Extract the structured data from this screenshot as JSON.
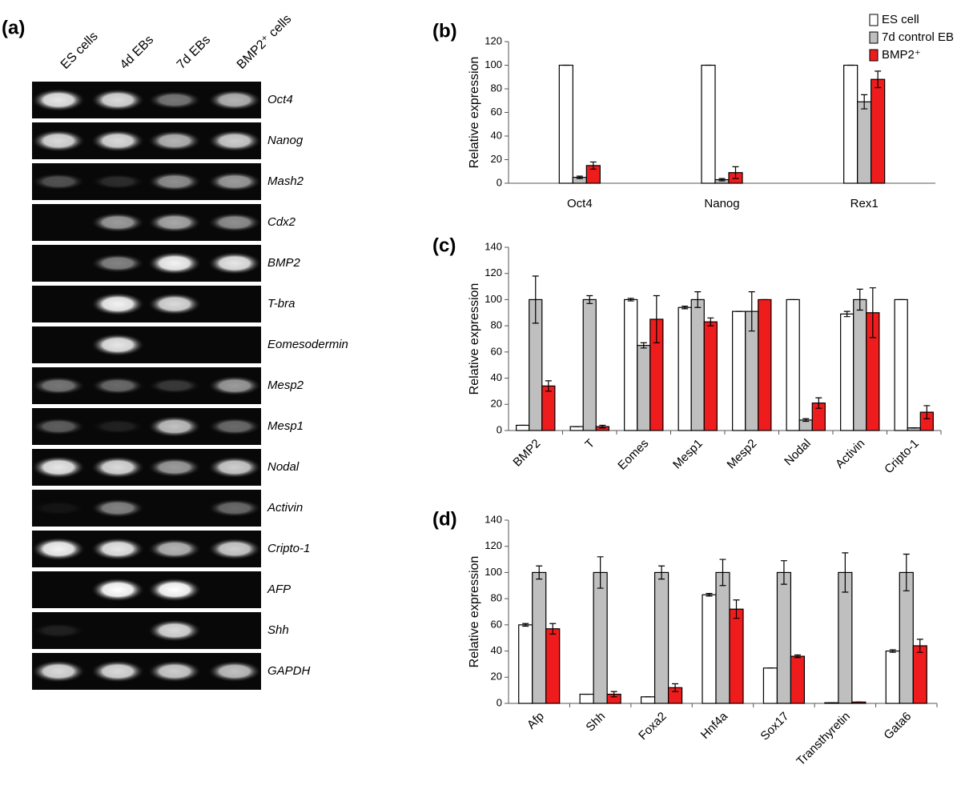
{
  "gel": {
    "panel_label": "(a)",
    "lanes": [
      "ES cells",
      "4d EBs",
      "7d EBs",
      "BMP2⁺ cells"
    ],
    "genes": [
      "Oct4",
      "Nanog",
      "Mash2",
      "Cdx2",
      "BMP2",
      "T-bra",
      "Eomesodermin",
      "Mesp2",
      "Mesp1",
      "Nodal",
      "Activin",
      "Cripto-1",
      "AFP",
      "Shh",
      "GAPDH"
    ]
  },
  "chart_data": [
    {
      "type": "bar",
      "panel_label": "(b)",
      "ylabel": "Relative expression",
      "categories": [
        "Oct4",
        "Nanog",
        "Rex1"
      ],
      "series": [
        {
          "name": "ES cell",
          "color": "#ffffff",
          "values": [
            100,
            100,
            100
          ],
          "errors": [
            0,
            0,
            0
          ]
        },
        {
          "name": "7d control EB",
          "color": "#bfbfbf",
          "values": [
            5,
            3,
            69
          ],
          "errors": [
            1,
            1,
            6
          ]
        },
        {
          "name": "BMP2⁺",
          "color": "#ee1c1c",
          "values": [
            15,
            9,
            88
          ],
          "errors": [
            3,
            5,
            7
          ]
        }
      ],
      "ylim": [
        0,
        120
      ],
      "yticks": [
        0,
        20,
        40,
        60,
        80,
        100,
        120
      ],
      "legend": "top-right"
    },
    {
      "type": "bar",
      "panel_label": "(c)",
      "ylabel": "Relative expression",
      "categories": [
        "BMP2",
        "T",
        "Eomes",
        "Mesp1",
        "Mesp2",
        "Nodal",
        "Activin",
        "Cripto-1"
      ],
      "series": [
        {
          "color": "#ffffff",
          "values": [
            4,
            3,
            100,
            94,
            91,
            100,
            89,
            100
          ],
          "errors": [
            0,
            0,
            1,
            1,
            0,
            0,
            2,
            0
          ]
        },
        {
          "color": "#bfbfbf",
          "values": [
            100,
            100,
            65,
            100,
            91,
            8,
            100,
            2
          ],
          "errors": [
            18,
            3,
            2,
            6,
            15,
            1,
            8,
            0
          ]
        },
        {
          "color": "#ee1c1c",
          "values": [
            34,
            3,
            85,
            83,
            100,
            21,
            90,
            14
          ],
          "errors": [
            4,
            1,
            18,
            3,
            0,
            4,
            19,
            5
          ]
        }
      ],
      "ylim": [
        0,
        140
      ],
      "yticks": [
        0,
        20,
        40,
        60,
        80,
        100,
        120,
        140
      ]
    },
    {
      "type": "bar",
      "panel_label": "(d)",
      "ylabel": "Relative expression",
      "categories": [
        "Afp",
        "Shh",
        "Foxa2",
        "Hnf4a",
        "Sox17",
        "Transthyretin",
        "Gata6"
      ],
      "series": [
        {
          "color": "#ffffff",
          "values": [
            60,
            7,
            5,
            83,
            27,
            0.5,
            40
          ],
          "errors": [
            1,
            0,
            0,
            1,
            0,
            0,
            1
          ]
        },
        {
          "color": "#bfbfbf",
          "values": [
            100,
            100,
            100,
            100,
            100,
            100,
            100
          ],
          "errors": [
            5,
            12,
            5,
            10,
            9,
            15,
            14
          ]
        },
        {
          "color": "#ee1c1c",
          "values": [
            57,
            7,
            12,
            72,
            36,
            1,
            44
          ],
          "errors": [
            4,
            2,
            3,
            7,
            1,
            0,
            5
          ]
        }
      ],
      "ylim": [
        0,
        140
      ],
      "yticks": [
        0,
        20,
        40,
        60,
        80,
        100,
        120,
        140
      ]
    }
  ]
}
